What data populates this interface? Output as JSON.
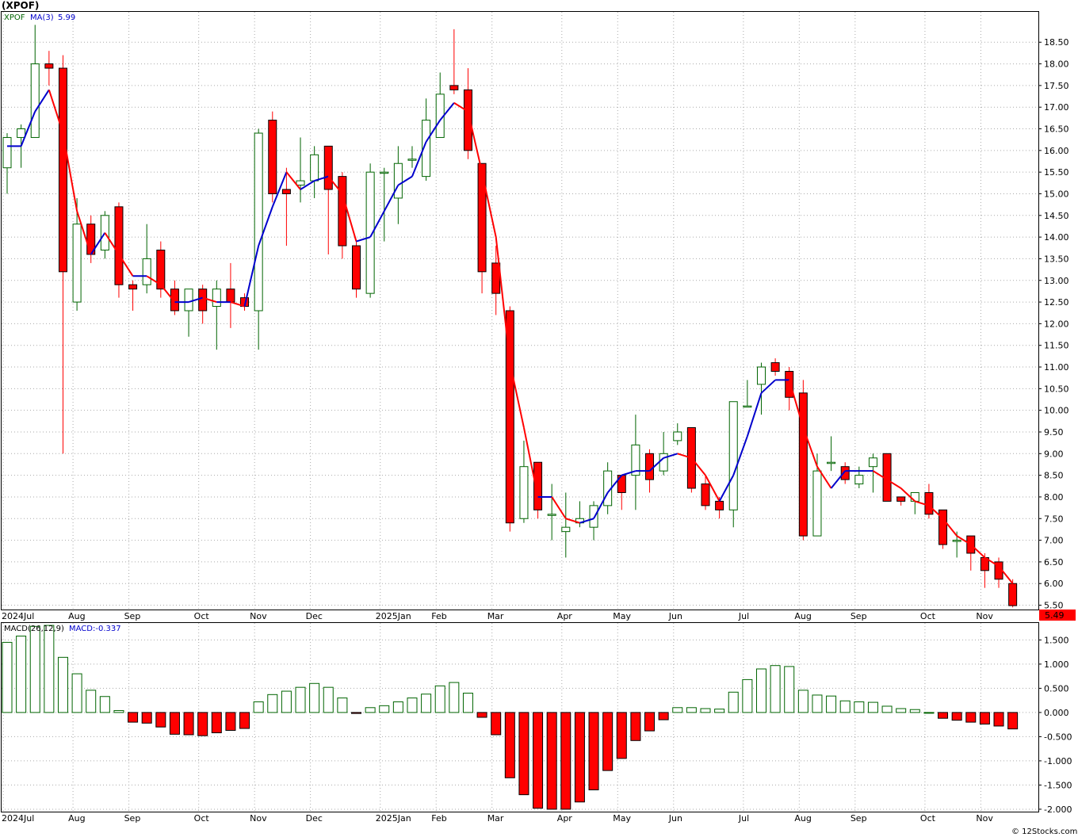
{
  "title": "(XPOF)",
  "legend": {
    "symbol": "XPOF",
    "ma_label": "MA(3)",
    "ma_value": "5.99"
  },
  "macd_legend": {
    "label": "MACD(26,12,9)",
    "value_label": "MACD:-0.337"
  },
  "last_price_label": "5.49",
  "copyright": "© 12Stocks.com",
  "colors": {
    "up": "#006400",
    "down": "#ff0000",
    "ma_up": "#0000cc",
    "ma_down": "#ff0000",
    "grid": "#aaaaaa"
  },
  "chart_data": [
    {
      "type": "candlestick",
      "period": "weekly",
      "y_ticks": [
        "18.50",
        "18.00",
        "17.50",
        "17.00",
        "16.50",
        "16.00",
        "15.50",
        "15.00",
        "14.50",
        "14.00",
        "13.50",
        "13.00",
        "12.50",
        "12.00",
        "11.50",
        "11.00",
        "10.50",
        "10.00",
        "9.50",
        "9.00",
        "8.50",
        "8.00",
        "7.50",
        "7.00",
        "6.50",
        "6.00",
        "5.50"
      ],
      "ylim": [
        5.4,
        19.2
      ],
      "x_labels": [
        {
          "label": "2024Jul",
          "index": 0
        },
        {
          "label": "Aug",
          "index": 5
        },
        {
          "label": "Sep",
          "index": 9
        },
        {
          "label": "Oct",
          "index": 14
        },
        {
          "label": "Nov",
          "index": 18
        },
        {
          "label": "Dec",
          "index": 22
        },
        {
          "label": "2025Jan",
          "index": 27
        },
        {
          "label": "Feb",
          "index": 31
        },
        {
          "label": "Mar",
          "index": 35
        },
        {
          "label": "Apr",
          "index": 40
        },
        {
          "label": "May",
          "index": 44
        },
        {
          "label": "Jun",
          "index": 48
        },
        {
          "label": "Jul",
          "index": 53
        },
        {
          "label": "Aug",
          "index": 57
        },
        {
          "label": "Sep",
          "index": 61
        },
        {
          "label": "Oct",
          "index": 66
        },
        {
          "label": "Nov",
          "index": 70
        }
      ],
      "candles": [
        [
          15.6,
          16.4,
          15.0,
          16.3
        ],
        [
          16.3,
          16.6,
          15.6,
          16.5
        ],
        [
          16.3,
          18.9,
          16.3,
          18.0
        ],
        [
          18.0,
          18.3,
          17.5,
          17.9
        ],
        [
          17.9,
          18.2,
          9.0,
          13.2
        ],
        [
          12.5,
          14.9,
          12.3,
          14.3
        ],
        [
          14.3,
          14.5,
          13.4,
          13.6
        ],
        [
          13.7,
          14.6,
          13.5,
          14.5
        ],
        [
          14.7,
          14.8,
          12.6,
          12.9
        ],
        [
          12.9,
          13.0,
          12.3,
          12.8
        ],
        [
          12.9,
          14.3,
          12.7,
          13.5
        ],
        [
          13.7,
          13.9,
          12.6,
          12.8
        ],
        [
          12.8,
          13.0,
          12.2,
          12.3
        ],
        [
          12.3,
          12.8,
          11.7,
          12.8
        ],
        [
          12.8,
          12.9,
          12.0,
          12.3
        ],
        [
          12.4,
          13.0,
          11.4,
          12.8
        ],
        [
          12.8,
          13.4,
          11.9,
          12.5
        ],
        [
          12.6,
          12.7,
          12.3,
          12.4
        ],
        [
          12.3,
          16.5,
          11.4,
          16.4
        ],
        [
          16.7,
          16.9,
          14.8,
          15.0
        ],
        [
          15.1,
          15.6,
          13.8,
          15.0
        ],
        [
          15.2,
          16.3,
          14.8,
          15.3
        ],
        [
          15.3,
          16.1,
          14.9,
          15.9
        ],
        [
          16.1,
          16.1,
          13.6,
          15.1
        ],
        [
          15.4,
          15.5,
          13.5,
          13.8
        ],
        [
          13.8,
          13.9,
          12.6,
          12.8
        ],
        [
          12.7,
          15.7,
          12.6,
          15.5
        ],
        [
          15.5,
          15.6,
          13.9,
          15.5
        ],
        [
          14.9,
          16.1,
          14.3,
          15.7
        ],
        [
          15.8,
          16.1,
          15.6,
          15.8
        ],
        [
          15.4,
          17.2,
          15.3,
          16.7
        ],
        [
          16.3,
          17.8,
          16.3,
          17.3
        ],
        [
          17.5,
          18.8,
          17.3,
          17.4
        ],
        [
          17.4,
          17.9,
          15.8,
          16.0
        ],
        [
          15.7,
          15.7,
          12.7,
          13.2
        ],
        [
          13.4,
          13.8,
          12.2,
          12.7
        ],
        [
          12.3,
          12.4,
          7.2,
          7.4
        ],
        [
          7.5,
          9.3,
          7.4,
          8.7
        ],
        [
          8.8,
          8.8,
          7.5,
          7.7
        ],
        [
          7.6,
          8.3,
          7.0,
          7.6
        ],
        [
          7.2,
          8.1,
          6.6,
          7.3
        ],
        [
          7.4,
          7.9,
          7.3,
          7.5
        ],
        [
          7.3,
          7.9,
          7.0,
          7.8
        ],
        [
          7.8,
          8.8,
          7.6,
          8.6
        ],
        [
          8.5,
          8.5,
          7.7,
          8.1
        ],
        [
          8.5,
          9.9,
          7.7,
          9.2
        ],
        [
          9.0,
          9.1,
          8.1,
          8.4
        ],
        [
          8.6,
          9.5,
          8.5,
          9.0
        ],
        [
          9.3,
          9.7,
          9.2,
          9.5
        ],
        [
          9.6,
          9.6,
          8.1,
          8.2
        ],
        [
          8.3,
          8.5,
          7.7,
          7.8
        ],
        [
          7.9,
          8.0,
          7.5,
          7.7
        ],
        [
          7.7,
          10.2,
          7.3,
          10.2
        ],
        [
          10.1,
          10.7,
          10.1,
          10.1
        ],
        [
          10.6,
          11.1,
          9.9,
          11.0
        ],
        [
          11.1,
          11.2,
          10.8,
          10.9
        ],
        [
          10.9,
          11.0,
          10.0,
          10.3
        ],
        [
          10.4,
          10.7,
          7.0,
          7.1
        ],
        [
          7.1,
          9.0,
          7.1,
          8.6
        ],
        [
          8.8,
          9.4,
          8.6,
          8.8
        ],
        [
          8.7,
          8.8,
          8.3,
          8.4
        ],
        [
          8.3,
          8.7,
          8.2,
          8.5
        ],
        [
          8.7,
          9.0,
          8.1,
          8.9
        ],
        [
          9.0,
          9.0,
          7.9,
          7.9
        ],
        [
          8.0,
          8.0,
          7.8,
          7.9
        ],
        [
          7.9,
          8.1,
          7.6,
          8.1
        ],
        [
          8.1,
          8.3,
          7.5,
          7.6
        ],
        [
          7.7,
          7.7,
          6.8,
          6.9
        ],
        [
          7.0,
          7.2,
          6.6,
          7.0
        ],
        [
          7.1,
          7.1,
          6.3,
          6.7
        ],
        [
          6.6,
          6.7,
          5.9,
          6.3
        ],
        [
          6.5,
          6.6,
          5.9,
          6.1
        ],
        [
          6.0,
          6.1,
          5.45,
          5.49
        ]
      ],
      "ma3": [
        16.1,
        16.1,
        16.9,
        17.4,
        16.4,
        14.6,
        13.6,
        14.1,
        13.6,
        13.1,
        13.1,
        12.9,
        12.5,
        12.5,
        12.6,
        12.5,
        12.5,
        12.4,
        13.8,
        14.7,
        15.5,
        15.1,
        15.3,
        15.4,
        15.0,
        13.9,
        14.0,
        14.6,
        15.2,
        15.4,
        16.2,
        16.7,
        17.1,
        16.9,
        15.5,
        14.0,
        11.1,
        9.6,
        8.0,
        8.0,
        7.5,
        7.4,
        7.5,
        8.1,
        8.5,
        8.6,
        8.6,
        8.9,
        9.0,
        8.9,
        8.5,
        7.9,
        8.5,
        9.4,
        10.4,
        10.7,
        10.7,
        9.6,
        8.7,
        8.2,
        8.6,
        8.6,
        8.6,
        8.4,
        8.2,
        7.9,
        7.8,
        7.5,
        7.1,
        6.9,
        6.6,
        6.4,
        6.0
      ],
      "ylabel": ""
    },
    {
      "type": "bar",
      "name": "MACD(26,12,9)",
      "y_ticks": [
        "1.500",
        "1.000",
        "0.500",
        "0.000",
        "-0.500",
        "-1.000",
        "-1.500",
        "-2.000"
      ],
      "ylim": [
        -2.05,
        1.85
      ],
      "values": [
        1.45,
        1.58,
        1.78,
        1.8,
        1.14,
        0.8,
        0.46,
        0.33,
        0.04,
        -0.2,
        -0.22,
        -0.3,
        -0.45,
        -0.46,
        -0.48,
        -0.42,
        -0.37,
        -0.33,
        0.22,
        0.37,
        0.44,
        0.52,
        0.6,
        0.52,
        0.3,
        -0.02,
        0.1,
        0.14,
        0.22,
        0.3,
        0.38,
        0.55,
        0.62,
        0.4,
        -0.1,
        -0.46,
        -1.35,
        -1.7,
        -1.98,
        -2.0,
        -2.0,
        -1.85,
        -1.6,
        -1.2,
        -0.95,
        -0.58,
        -0.38,
        -0.15,
        0.1,
        0.1,
        0.08,
        0.07,
        0.42,
        0.68,
        0.9,
        0.97,
        0.95,
        0.46,
        0.36,
        0.34,
        0.24,
        0.22,
        0.21,
        0.13,
        0.08,
        0.06,
        0.0,
        -0.12,
        -0.16,
        -0.2,
        -0.24,
        -0.28,
        -0.34
      ]
    }
  ]
}
